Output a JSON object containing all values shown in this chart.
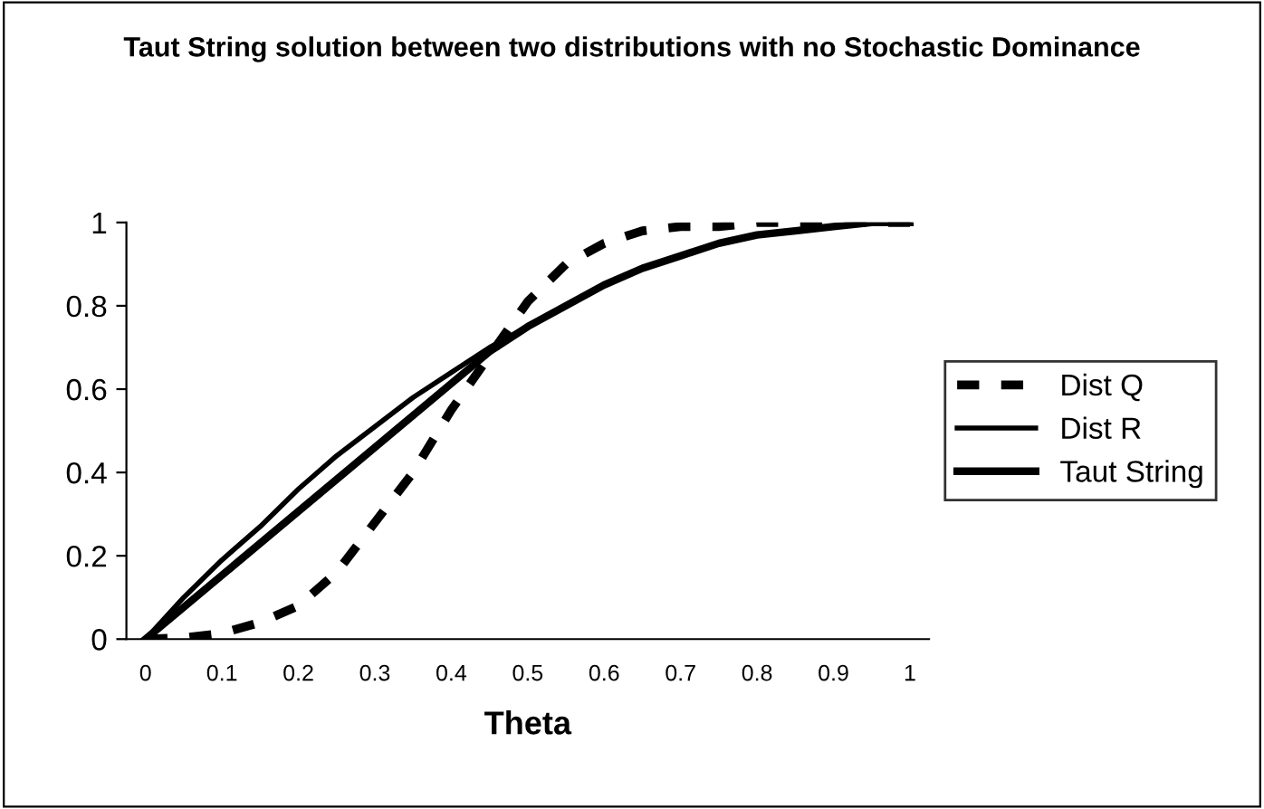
{
  "chart_data": {
    "type": "line",
    "title": "Taut String solution between two distributions with no Stochastic Dominance",
    "xlabel": "Theta",
    "x": [
      0,
      0.05,
      0.1,
      0.15,
      0.2,
      0.25,
      0.3,
      0.35,
      0.4,
      0.45,
      0.5,
      0.55,
      0.6,
      0.65,
      0.7,
      0.75,
      0.8,
      0.85,
      0.9,
      0.95,
      1
    ],
    "series": [
      {
        "name": "Dist Q",
        "color": "#000000",
        "line_style": "dashed",
        "values": [
          0,
          0.003,
          0.014,
          0.04,
          0.08,
          0.16,
          0.28,
          0.4,
          0.55,
          0.68,
          0.81,
          0.9,
          0.95,
          0.98,
          0.99,
          0.99,
          1,
          1,
          1,
          1,
          1
        ]
      },
      {
        "name": "Dist R",
        "color": "#000000",
        "line_style": "solid",
        "values": [
          0,
          0.1,
          0.19,
          0.27,
          0.36,
          0.44,
          0.51,
          0.58,
          0.64,
          0.7,
          0.75,
          0.8,
          0.85,
          0.89,
          0.92,
          0.95,
          0.97,
          0.98,
          0.99,
          1,
          1
        ]
      },
      {
        "name": "Taut String",
        "color": "#000000",
        "line_style": "solid",
        "x": [
          0,
          0.45,
          0.5,
          0.55,
          0.6,
          0.65,
          0.7,
          0.75,
          0.8,
          0.85,
          0.9,
          0.95,
          1
        ],
        "values": [
          0,
          0.69,
          0.75,
          0.8,
          0.85,
          0.89,
          0.92,
          0.95,
          0.97,
          0.98,
          0.99,
          1,
          1
        ]
      }
    ],
    "xlim": [
      -0.025,
      1.025
    ],
    "xticks": [
      0,
      0.1,
      0.2,
      0.3,
      0.4,
      0.5,
      0.6,
      0.7,
      0.8,
      0.9,
      1
    ],
    "ylim": [
      0,
      1
    ],
    "yticks": [
      0,
      0.2,
      0.4,
      0.6,
      0.8,
      1
    ],
    "grid": false,
    "legend": "right",
    "marker": "none"
  }
}
